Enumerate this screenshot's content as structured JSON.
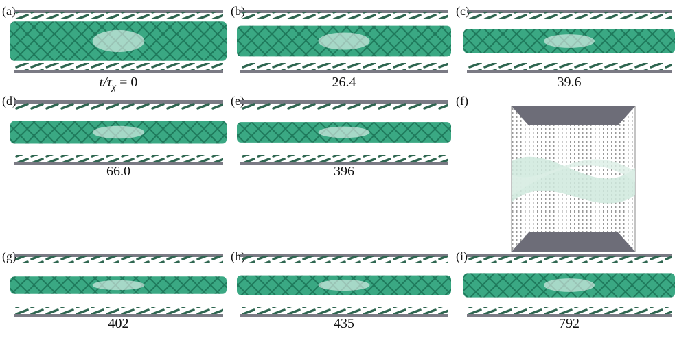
{
  "panels": [
    {
      "label": "(a)",
      "caption": {
        "main": "t/τ",
        "sub": "χ",
        "rest": " = 0"
      }
    },
    {
      "label": "(b)",
      "caption": "26.4"
    },
    {
      "label": "(c)",
      "caption": "39.6"
    },
    {
      "label": "(d)",
      "caption": "66.0"
    },
    {
      "label": "(e)",
      "caption": "396"
    },
    {
      "label": "(f)"
    },
    {
      "label": "(g)",
      "caption": "402"
    },
    {
      "label": "(h)",
      "caption": "435"
    },
    {
      "label": "(i)",
      "caption": "792"
    }
  ]
}
